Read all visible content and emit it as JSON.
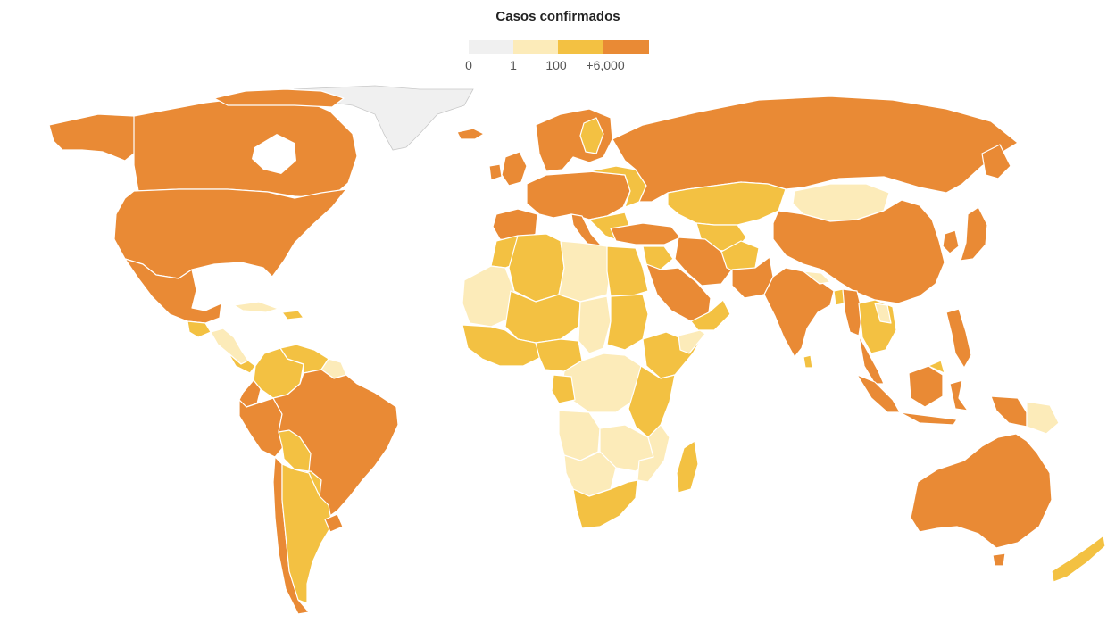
{
  "legend": {
    "title": "Casos confirmados",
    "bins": [
      {
        "label": "0",
        "color": "#f0f0f0"
      },
      {
        "label": "1",
        "color": "#fcebb9"
      },
      {
        "label": "100",
        "color": "#f3c142"
      },
      {
        "label": "+6,000",
        "color": "#e98a35"
      }
    ]
  },
  "colors": {
    "none": "#f0f0f0",
    "low": "#fcebb9",
    "mid": "#f3c142",
    "high": "#e98a35",
    "border": "#ffffff"
  }
}
